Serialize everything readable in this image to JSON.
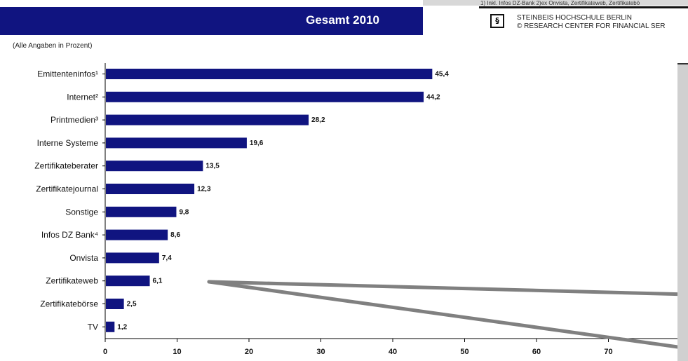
{
  "header": {
    "title": "Gesamt 2010",
    "subtitle": "(Alle Angaben in Prozent)"
  },
  "right_slide": {
    "footnote": "1) Inkl. Infos DZ-Bank 2)ex Onvista, Zertifikateweb, Zertifikatebö",
    "org_line_1": "STEINBEIS HOCHSCHULE BERLIN",
    "org_line_2": "© RESEARCH CENTER FOR FINANCIAL SER",
    "logo_icon": "steinbeis-logo-icon"
  },
  "colors": {
    "bar": "#101480",
    "title_bar": "#101480",
    "annotation_line": "#808080"
  },
  "chart_data": {
    "type": "bar",
    "orientation": "horizontal",
    "categories": [
      "Emittenteninfos¹",
      "Internet²",
      "Printmedien³",
      "Interne Systeme",
      "Zertifikateberater",
      "Zertifikatejournal",
      "Sonstige",
      "Infos DZ Bank⁴",
      "Onvista",
      "Zertifikateweb",
      "Zertifikatebörse",
      "TV"
    ],
    "values": [
      45.4,
      44.2,
      28.2,
      19.6,
      13.5,
      12.3,
      9.8,
      8.6,
      7.4,
      6.1,
      2.5,
      1.2
    ],
    "value_labels": [
      "45,4",
      "44,2",
      "28,2",
      "19,6",
      "13,5",
      "12,3",
      "9,8",
      "8,6",
      "7,4",
      "6,1",
      "2,5",
      "1,2"
    ],
    "x_ticks": [
      0,
      10,
      20,
      30,
      40,
      50,
      60,
      70
    ],
    "xlim": [
      0,
      80
    ],
    "grid": false,
    "legend": "none"
  }
}
